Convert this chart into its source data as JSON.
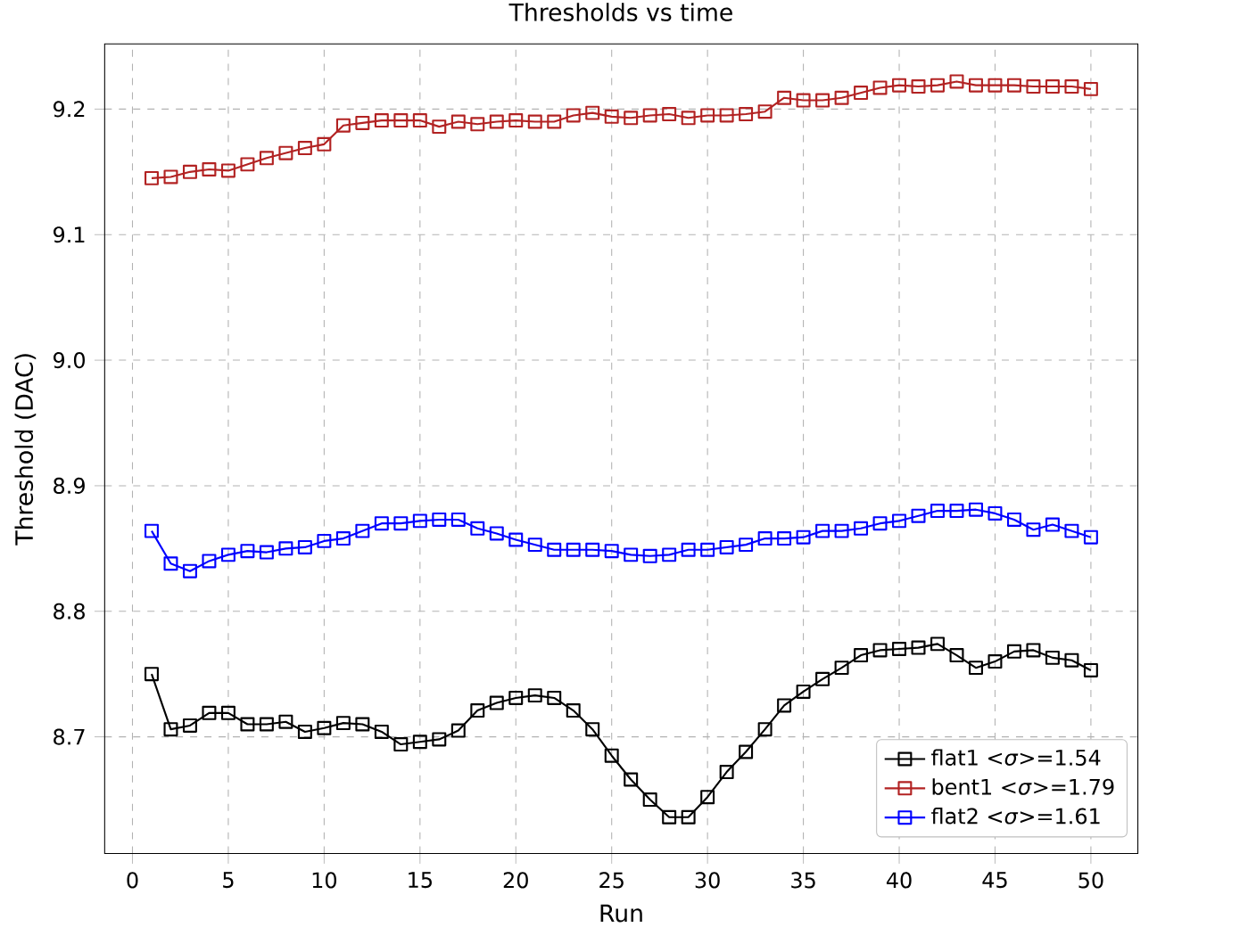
{
  "chart_data": {
    "type": "line",
    "title": "Thresholds vs time",
    "xlabel": "Run",
    "ylabel": "Threshold (DAC)",
    "x": [
      1,
      2,
      3,
      4,
      5,
      6,
      7,
      8,
      9,
      10,
      11,
      12,
      13,
      14,
      15,
      16,
      17,
      18,
      19,
      20,
      21,
      22,
      23,
      24,
      25,
      26,
      27,
      28,
      29,
      30,
      31,
      32,
      33,
      34,
      35,
      36,
      37,
      38,
      39,
      40,
      41,
      42,
      43,
      44,
      45,
      46,
      47,
      48,
      49,
      50
    ],
    "series": [
      {
        "name": "flat1 <*σ*>=1.54",
        "color": "#000000",
        "values": [
          8.75,
          8.706,
          8.709,
          8.719,
          8.719,
          8.71,
          8.71,
          8.712,
          8.704,
          8.707,
          8.711,
          8.71,
          8.704,
          8.694,
          8.696,
          8.698,
          8.705,
          8.721,
          8.727,
          8.731,
          8.733,
          8.731,
          8.721,
          8.706,
          8.685,
          8.666,
          8.65,
          8.636,
          8.636,
          8.652,
          8.672,
          8.688,
          8.706,
          8.725,
          8.736,
          8.746,
          8.755,
          8.765,
          8.769,
          8.77,
          8.771,
          8.774,
          8.765,
          8.755,
          8.76,
          8.768,
          8.769,
          8.763,
          8.761,
          8.753
        ]
      },
      {
        "name": "bent1 <*σ*>=1.79",
        "color": "#b22222",
        "values": [
          9.145,
          9.146,
          9.15,
          9.152,
          9.151,
          9.156,
          9.161,
          9.165,
          9.169,
          9.172,
          9.187,
          9.189,
          9.191,
          9.191,
          9.191,
          9.186,
          9.19,
          9.188,
          9.19,
          9.191,
          9.19,
          9.19,
          9.195,
          9.197,
          9.194,
          9.193,
          9.195,
          9.196,
          9.193,
          9.195,
          9.195,
          9.196,
          9.198,
          9.209,
          9.207,
          9.207,
          9.209,
          9.213,
          9.217,
          9.219,
          9.218,
          9.219,
          9.222,
          9.219,
          9.219,
          9.219,
          9.218,
          9.218,
          9.218,
          9.216
        ]
      },
      {
        "name": "flat2 <*σ*>=1.61",
        "color": "#0000ff",
        "values": [
          8.864,
          8.838,
          8.832,
          8.84,
          8.845,
          8.848,
          8.847,
          8.85,
          8.851,
          8.856,
          8.858,
          8.864,
          8.87,
          8.87,
          8.872,
          8.873,
          8.873,
          8.866,
          8.862,
          8.857,
          8.853,
          8.849,
          8.849,
          8.849,
          8.848,
          8.845,
          8.844,
          8.845,
          8.849,
          8.849,
          8.851,
          8.853,
          8.858,
          8.858,
          8.859,
          8.864,
          8.864,
          8.866,
          8.87,
          8.872,
          8.876,
          8.88,
          8.88,
          8.881,
          8.878,
          8.873,
          8.865,
          8.869,
          8.864,
          8.859
        ]
      }
    ],
    "xlim": [
      -1.45,
      52.45
    ],
    "ylim": [
      8.607,
      9.252
    ],
    "xticks": [
      0,
      5,
      10,
      15,
      20,
      25,
      30,
      35,
      40,
      45,
      50
    ],
    "yticks": [
      8.7,
      8.8,
      8.9,
      {
        "value": 9.0,
        "label": "9.0"
      },
      9.1,
      9.2
    ],
    "grid": true,
    "legend": "bottom right",
    "marker": "square",
    "line_style": "solid"
  }
}
